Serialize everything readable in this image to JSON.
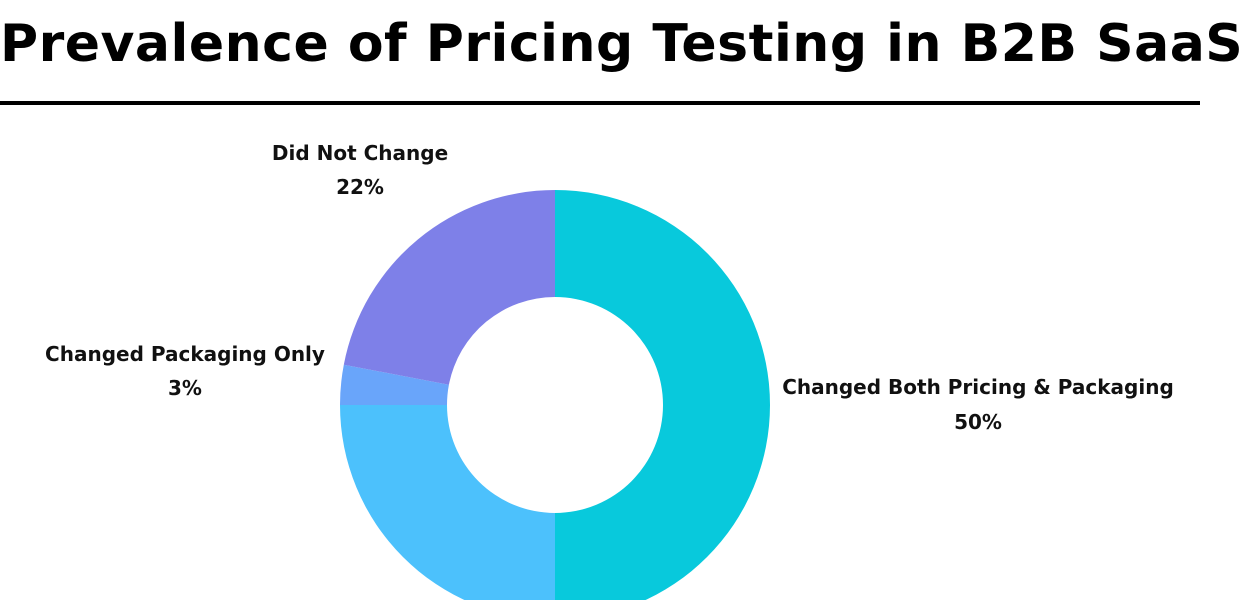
{
  "title": "Prevalence of Pricing Testing in B2B SaaS",
  "chart_data": {
    "type": "pie",
    "variant": "donut",
    "unit": "%",
    "slices": [
      {
        "label": "Changed Both Pricing & Packaging",
        "value": 50,
        "display": "50%",
        "color": "#08C9DC"
      },
      {
        "label": "",
        "value": 25,
        "display": "",
        "color": "#4CC1FC"
      },
      {
        "label": "Changed Packaging Only",
        "value": 3,
        "display": "3%",
        "color": "#69A5FA"
      },
      {
        "label": "Did Not Change",
        "value": 22,
        "display": "22%",
        "color": "#7E80E8"
      }
    ]
  }
}
